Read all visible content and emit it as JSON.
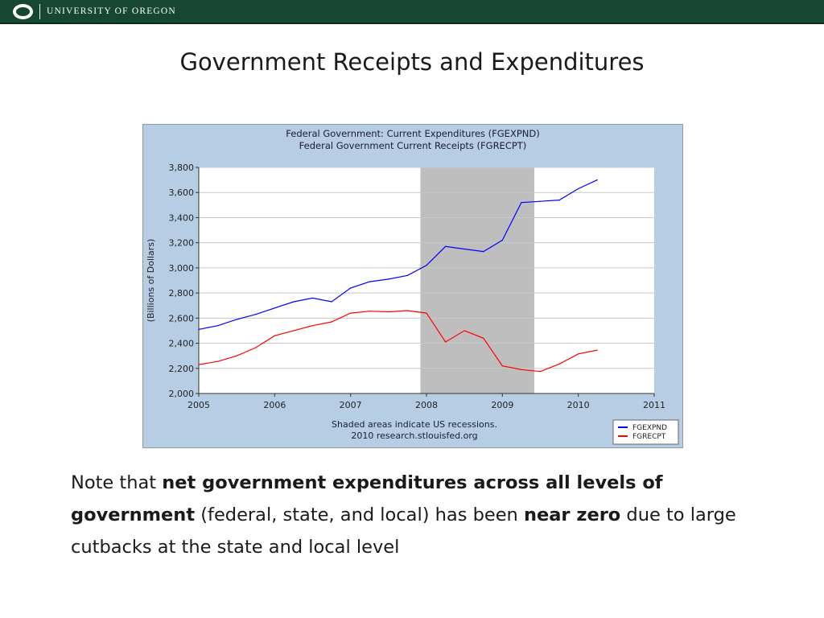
{
  "header": {
    "brand": "UNIVERSITY OF OREGON",
    "logo_icon": "oregon-o-logo-icon"
  },
  "slide": {
    "title": "Government Receipts and Expenditures",
    "note": {
      "p1": "Note that ",
      "b1": "net government expenditures across all levels of government",
      "p2": " (federal, state, and local) has been ",
      "b2": "near zero",
      "p3": " due to large cutbacks at the state and local level"
    }
  },
  "chart_data": {
    "type": "line",
    "title": "Federal Government: Current Expenditures (FGEXPND)",
    "subtitle": "Federal Government Current Receipts (FGRECPT)",
    "ylabel": "(Billions of Dollars)",
    "xlabel": "",
    "xlim": [
      2005,
      2011
    ],
    "ylim": [
      2000,
      3800
    ],
    "xticks": [
      2005,
      2006,
      2007,
      2008,
      2009,
      2010,
      2011
    ],
    "yticks": [
      "2,000",
      "2,200",
      "2,400",
      "2,600",
      "2,800",
      "3,000",
      "3,200",
      "3,400",
      "3,600",
      "3,800"
    ],
    "grid": true,
    "legend": "bottom-right",
    "recession": {
      "start": 2007.92,
      "end": 2009.42,
      "color": "#bebebe"
    },
    "footnote": [
      "Shaded areas indicate US recessions.",
      "2010 research.stlouisfed.org"
    ],
    "x": [
      2005.0,
      2005.25,
      2005.5,
      2005.75,
      2006.0,
      2006.25,
      2006.5,
      2006.75,
      2007.0,
      2007.25,
      2007.5,
      2007.75,
      2008.0,
      2008.25,
      2008.5,
      2008.75,
      2009.0,
      2009.25,
      2009.5,
      2009.75,
      2010.0,
      2010.25
    ],
    "series": [
      {
        "name": "FGEXPND",
        "color": "#0000ff",
        "values": [
          2510,
          2540,
          2590,
          2630,
          2680,
          2730,
          2760,
          2730,
          2840,
          2890,
          2910,
          2940,
          3020,
          3170,
          3150,
          3130,
          3220,
          3520,
          3530,
          3540,
          3630,
          3700
        ]
      },
      {
        "name": "FGRECPT",
        "color": "#ff0000",
        "values": [
          2230,
          2255,
          2300,
          2365,
          2460,
          2500,
          2540,
          2570,
          2640,
          2655,
          2650,
          2660,
          2640,
          2410,
          2500,
          2440,
          2220,
          2190,
          2175,
          2235,
          2315,
          2345
        ]
      }
    ]
  }
}
